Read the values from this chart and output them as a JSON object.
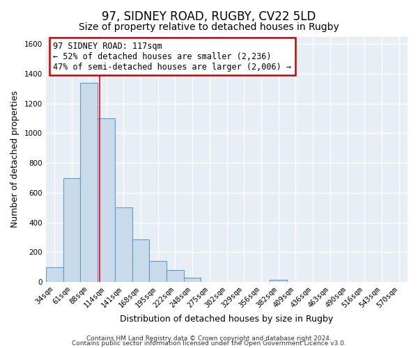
{
  "title": "97, SIDNEY ROAD, RUGBY, CV22 5LD",
  "subtitle": "Size of property relative to detached houses in Rugby",
  "xlabel": "Distribution of detached houses by size in Rugby",
  "ylabel": "Number of detached properties",
  "bar_labels": [
    "34sqm",
    "61sqm",
    "88sqm",
    "114sqm",
    "141sqm",
    "168sqm",
    "195sqm",
    "222sqm",
    "248sqm",
    "275sqm",
    "302sqm",
    "329sqm",
    "356sqm",
    "382sqm",
    "409sqm",
    "436sqm",
    "463sqm",
    "490sqm",
    "516sqm",
    "543sqm",
    "570sqm"
  ],
  "bar_values": [
    100,
    700,
    1340,
    1100,
    500,
    285,
    143,
    80,
    30,
    0,
    0,
    0,
    0,
    15,
    0,
    0,
    0,
    0,
    0,
    0,
    0
  ],
  "bar_color": "#c9daea",
  "bar_edge_color": "#5a9ecf",
  "ylim": [
    0,
    1650
  ],
  "yticks": [
    0,
    200,
    400,
    600,
    800,
    1000,
    1200,
    1400,
    1600
  ],
  "annotation_box_text": "97 SIDNEY ROAD: 117sqm\n← 52% of detached houses are smaller (2,236)\n47% of semi-detached houses are larger (2,006) →",
  "annotation_box_color": "#ffffff",
  "annotation_box_edge_color": "#cc0000",
  "footer_line1": "Contains HM Land Registry data © Crown copyright and database right 2024.",
  "footer_line2": "Contains public sector information licensed under the Open Government Licence v3.0.",
  "background_color": "#ffffff",
  "plot_background_color": "#e8eef5",
  "grid_color": "#ffffff",
  "title_fontsize": 12,
  "subtitle_fontsize": 10,
  "axis_label_fontsize": 9,
  "tick_fontsize": 7.5,
  "footer_fontsize": 6.5,
  "annotation_fontsize": 8.5,
  "bar_width": 1.0
}
